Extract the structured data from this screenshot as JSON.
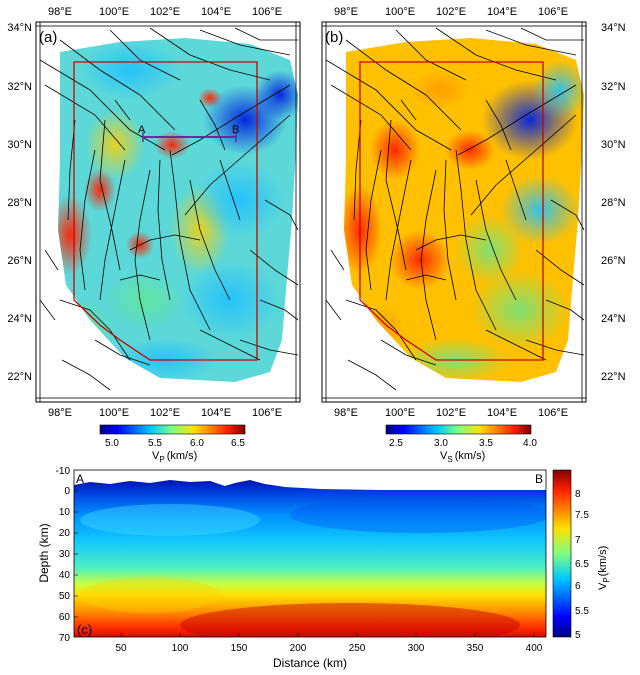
{
  "panels": {
    "a": {
      "label": "(a)",
      "profile_start": "A",
      "profile_end": "B"
    },
    "b": {
      "label": "(b)"
    },
    "c": {
      "label": "(c)",
      "start_label": "A",
      "end_label": "B"
    }
  },
  "map_axes": {
    "lon_ticks": [
      "98°E",
      "100°E",
      "102°E",
      "104°E",
      "106°E"
    ],
    "lat_ticks": [
      "34°N",
      "32°N",
      "30°N",
      "28°N",
      "26°N",
      "24°N",
      "22°N"
    ]
  },
  "colorbar_vp_map": {
    "ticks": [
      "5.0",
      "5.5",
      "6.0",
      "6.5"
    ],
    "label_main": "V",
    "label_sub": "P",
    "label_unit": "(km/s)"
  },
  "colorbar_vs_map": {
    "ticks": [
      "2.5",
      "3.0",
      "3.5",
      "4.0"
    ],
    "label_main": "V",
    "label_sub": "S",
    "label_unit": "(km/s)"
  },
  "section": {
    "xlabel": "Distance (km)",
    "ylabel": "Depth (km)",
    "x_ticks": [
      "50",
      "100",
      "150",
      "200",
      "250",
      "300",
      "350",
      "400"
    ],
    "y_ticks": [
      "-10",
      "0",
      "10",
      "20",
      "30",
      "40",
      "50",
      "60",
      "70"
    ]
  },
  "colorbar_vp_section": {
    "ticks": [
      "8",
      "7.5",
      "7",
      "6.5",
      "6",
      "5.5",
      "5"
    ],
    "label_main": "V",
    "label_sub": "P",
    "label_unit": "(km/s)"
  }
}
